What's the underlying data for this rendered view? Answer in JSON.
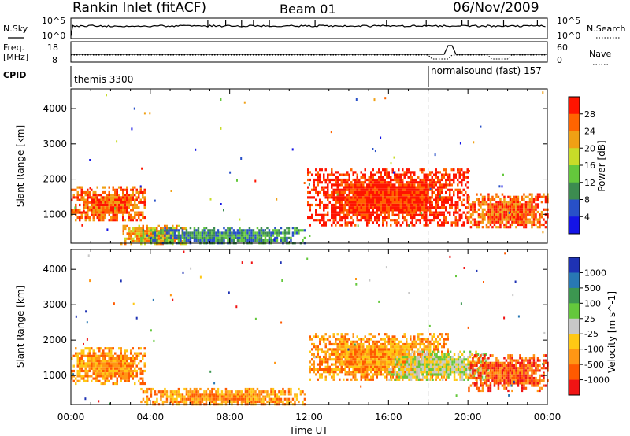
{
  "header": {
    "station": "Rankin Inlet (fitACF)",
    "beam": "Beam 01",
    "date": "06/Nov/2009"
  },
  "top_panels": {
    "nsky_label": "N.Sky",
    "nsearch_label": "N.Search",
    "freq_label": "Freq.",
    "freq_unit": "[MHz]",
    "nave_label": "Nave",
    "cpid_label": "CPID",
    "nsky_tick_high": "10^5",
    "nsky_tick_low": "10^0",
    "nsearch_tick_high": "10^5",
    "nsearch_tick_low": "10^0",
    "freq_tick_high": "18",
    "freq_tick_low": "8",
    "nave_tick_high": "60",
    "nave_tick_low": "0",
    "cpid_segments": [
      {
        "name": "themis 3300",
        "start_hour": 0,
        "end_hour": 18
      },
      {
        "name": "normalsound (fast) 157",
        "start_hour": 18,
        "end_hour": 24
      }
    ]
  },
  "chart_data": [
    {
      "type": "heatmap",
      "name": "power",
      "xlabel": "",
      "ylabel": "Slant Range [km]",
      "xlim": [
        0,
        24
      ],
      "ylim": [
        180,
        4560
      ],
      "yticks": [
        1000,
        2000,
        3000,
        4000
      ],
      "colorbar_label": "Power [dB]",
      "colorbar_ticks": [
        "4",
        "8",
        "12",
        "16",
        "20",
        "24",
        "28"
      ],
      "colorbar_colors": [
        "#1414e6",
        "#2850c8",
        "#3c8c50",
        "#64c83c",
        "#c8dc28",
        "#f0a014",
        "#ff6400",
        "#ff1400"
      ],
      "echo_regions": [
        {
          "start_hour": 0.0,
          "end_hour": 3.7,
          "min_km": 800,
          "max_km": 1800,
          "level": 24
        },
        {
          "start_hour": 2.5,
          "end_hour": 5.8,
          "min_km": 180,
          "max_km": 700,
          "level": 20
        },
        {
          "start_hour": 3.5,
          "end_hour": 11.8,
          "min_km": 180,
          "max_km": 650,
          "level": 8
        },
        {
          "start_hour": 11.9,
          "end_hour": 20.0,
          "min_km": 700,
          "max_km": 2300,
          "level": 26
        },
        {
          "start_hour": 20.0,
          "end_hour": 24.0,
          "min_km": 600,
          "max_km": 1600,
          "level": 24
        }
      ]
    },
    {
      "type": "heatmap",
      "name": "velocity",
      "xlabel": "Time UT",
      "ylabel": "Slant Range [km]",
      "xlim": [
        0,
        24
      ],
      "ylim": [
        180,
        4560
      ],
      "xticks": [
        "00:00",
        "04:00",
        "08:00",
        "12:00",
        "16:00",
        "20:00",
        "00:00"
      ],
      "yticks": [
        1000,
        2000,
        3000,
        4000
      ],
      "colorbar_label": "Velocity [m s^-1]",
      "colorbar_ticks": [
        "1000",
        "500",
        "100",
        "25",
        "-25",
        "-100",
        "-500",
        "-1000"
      ],
      "colorbar_colors": [
        "#1e32b4",
        "#2878b4",
        "#3c9650",
        "#64c83c",
        "#c8c8c8",
        "#ffc814",
        "#ff9614",
        "#ff5a00",
        "#f01414"
      ],
      "echo_regions": [
        {
          "start_hour": 0.0,
          "end_hour": 3.7,
          "min_km": 800,
          "max_km": 1800,
          "level": -100
        },
        {
          "start_hour": 3.5,
          "end_hour": 11.8,
          "min_km": 180,
          "max_km": 650,
          "level": -100
        },
        {
          "start_hour": 12.0,
          "end_hour": 19.0,
          "min_km": 900,
          "max_km": 2200,
          "level": -100
        },
        {
          "start_hour": 16.0,
          "end_hour": 21.0,
          "min_km": 900,
          "max_km": 1700,
          "level": 0
        },
        {
          "start_hour": 20.0,
          "end_hour": 24.0,
          "min_km": 600,
          "max_km": 1600,
          "level": -500
        }
      ]
    }
  ]
}
